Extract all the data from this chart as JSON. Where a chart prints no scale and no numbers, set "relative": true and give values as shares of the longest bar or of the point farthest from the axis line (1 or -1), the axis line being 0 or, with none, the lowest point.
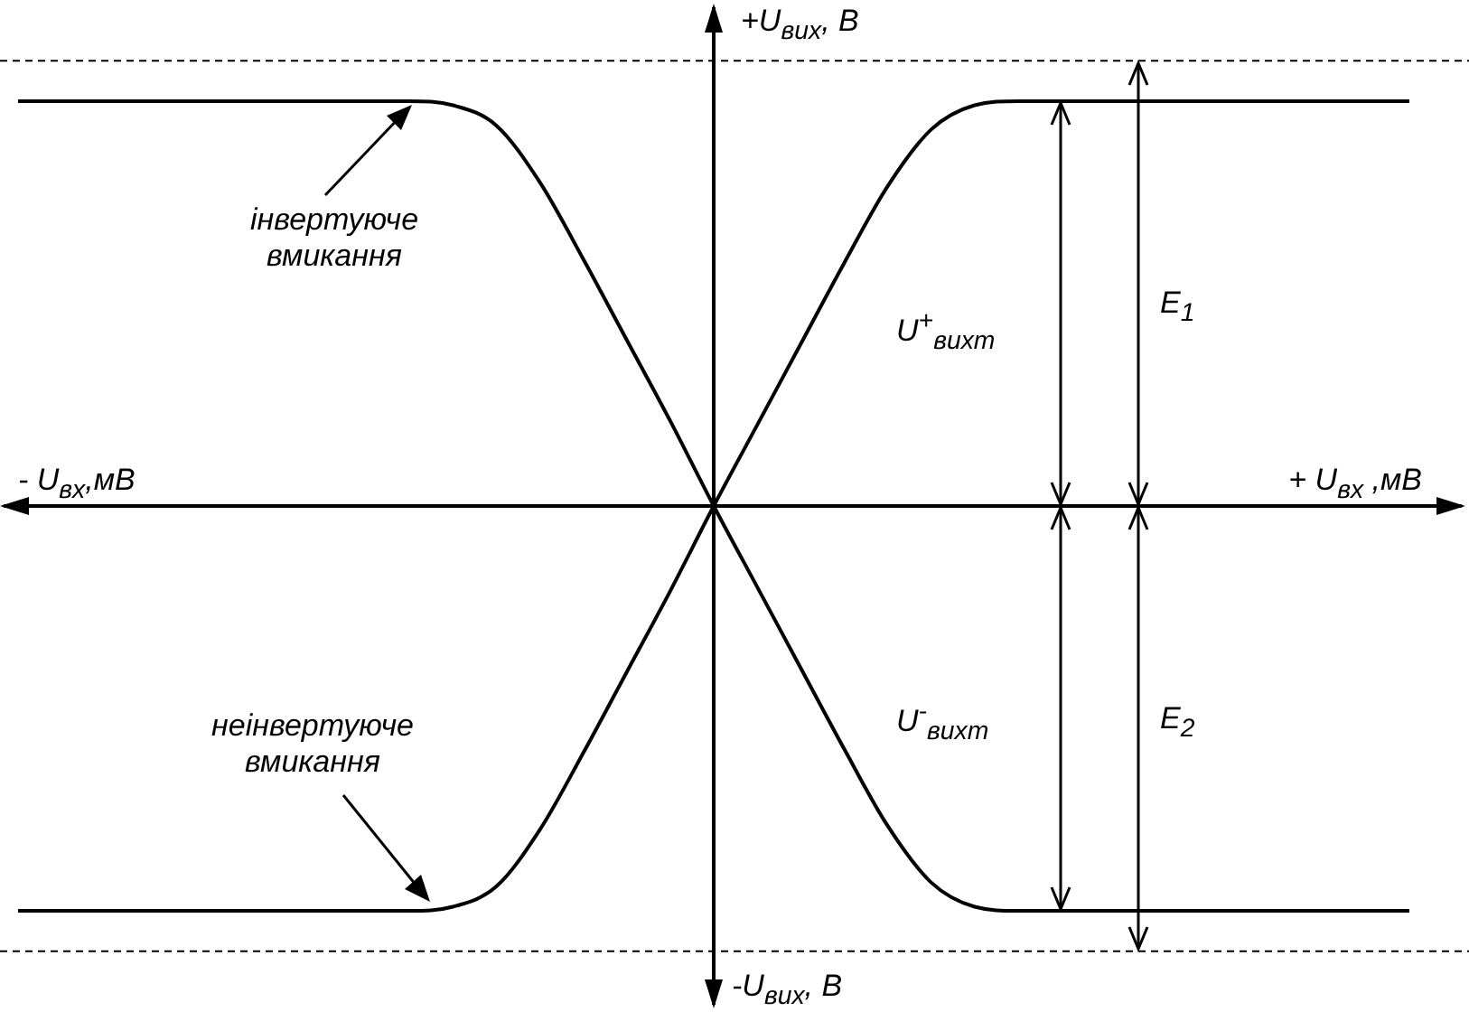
{
  "chart_data": {
    "type": "line",
    "relative": true,
    "categories": [
      null,
      null,
      null,
      null,
      null,
      null,
      null,
      null,
      null,
      null,
      null,
      null,
      null,
      null,
      null,
      null,
      null,
      null,
      null,
      null,
      null,
      null,
      null,
      null,
      null,
      null,
      null,
      null,
      null,
      null,
      null,
      null,
      null
    ],
    "series": [
      {
        "color": "#000000",
        "values": [
          1,
          1,
          1,
          1,
          1,
          1,
          1,
          1,
          1,
          1,
          0.99,
          0.94,
          0.8,
          0.61,
          0.41,
          0.21,
          0,
          -0.2,
          -0.4,
          -0.6,
          -0.79,
          -0.93,
          -0.99,
          -1,
          -1,
          -1,
          -1,
          -1,
          -1,
          -1,
          -1,
          -1,
          -1
        ]
      },
      {
        "color": "#000000",
        "values": [
          -1,
          -1,
          -1,
          -1,
          -1,
          -1,
          -1,
          -1,
          -1,
          -1,
          -0.99,
          -0.94,
          -0.8,
          -0.61,
          -0.41,
          -0.21,
          0,
          0.2,
          0.4,
          0.6,
          0.79,
          0.93,
          0.99,
          1,
          1,
          1,
          1,
          1,
          1,
          1,
          1,
          1,
          1
        ]
      }
    ],
    "xlabel": "+ U$_{вх}$ ,мВ",
    "ylabel": "+U$_{вих}$, В",
    "annotations": [
      "- U$_{вх}$,мВ",
      "-U$_{вих}$, В",
      "інвертуюче вмикання",
      "неінвертуюче вмикання",
      "U$^{+}$$_{вихm}$",
      "U$^{-}$$_{вихm}$",
      "E$_{1}$",
      "E$_{2}$"
    ],
    "ref_lines": [
      {
        "axis": "y",
        "value": 1.1,
        "color": "#000000",
        "line_style": "dashed"
      },
      {
        "axis": "y",
        "value": -1.1,
        "color": "#000000",
        "line_style": "dashed"
      }
    ],
    "legend": false,
    "marker": "none",
    "line_style": "solid"
  }
}
